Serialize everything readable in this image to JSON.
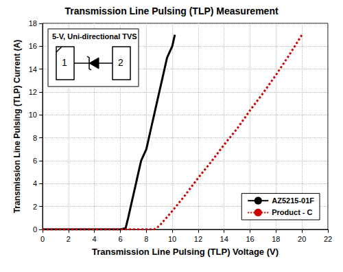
{
  "chart_data": {
    "type": "line",
    "title": "Transmission Line Pulsing (TLP) Measurement",
    "x_label": "Transmission Line Pulsing (TLP) Voltage (V)",
    "y_label": "Transmission Line Pulsing (TLP) Current (A)",
    "annotation": "5-V, Uni-directional TVS",
    "pin_labels": [
      "1",
      "2"
    ],
    "xlim": [
      0,
      22
    ],
    "xticks": [
      0,
      2,
      4,
      6,
      8,
      10,
      12,
      14,
      16,
      18,
      20,
      22
    ],
    "ylim": [
      0,
      18
    ],
    "yticks": [
      0,
      2,
      4,
      6,
      8,
      10,
      12,
      14,
      16,
      18
    ],
    "grid": true,
    "legend": "lower right",
    "series": [
      {
        "name": "AZ5215-01F",
        "color": "#000000",
        "line_style": "solid",
        "marker": "none",
        "x": [
          0,
          2,
          4,
          6,
          6.4,
          6.6,
          6.8,
          7,
          7.2,
          7.4,
          7.6,
          7.8,
          8,
          8.2,
          8.4,
          8.6,
          8.8,
          9,
          9.2,
          9.4,
          9.6,
          9.8,
          10,
          10.2
        ],
        "values": [
          0,
          0,
          0,
          0,
          0.1,
          1,
          2,
          3,
          4,
          5,
          6,
          6.5,
          7,
          8,
          9,
          10,
          11,
          12,
          13,
          14,
          15,
          15.5,
          16,
          17
        ]
      },
      {
        "name": "Product - C",
        "color": "#cc0000",
        "line_style": "dotted",
        "marker": "none",
        "x": [
          0,
          8.6,
          9,
          10,
          11,
          12,
          13,
          14,
          15,
          16,
          17,
          18,
          19,
          20
        ],
        "values": [
          0,
          0,
          0.3,
          1.6,
          3,
          4.5,
          5.9,
          7.4,
          8.8,
          10.4,
          11.9,
          13.5,
          15.2,
          17
        ]
      }
    ]
  }
}
